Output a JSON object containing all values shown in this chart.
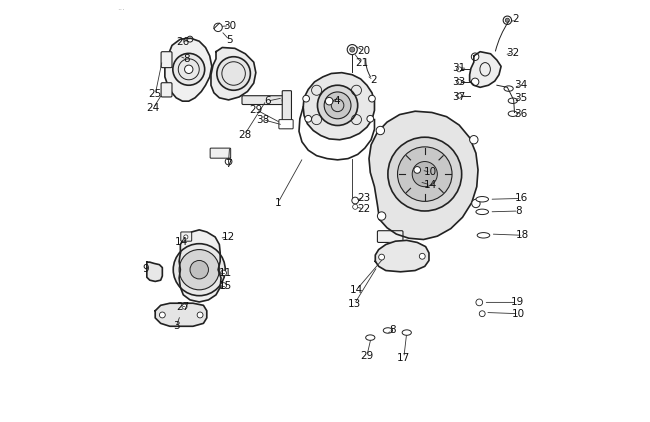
{
  "background_color": "#ffffff",
  "fig_width": 6.5,
  "fig_height": 4.22,
  "dpi": 100,
  "watermark": "...",
  "line_color": "#222222",
  "text_color": "#111111",
  "font_size": 7.5
}
